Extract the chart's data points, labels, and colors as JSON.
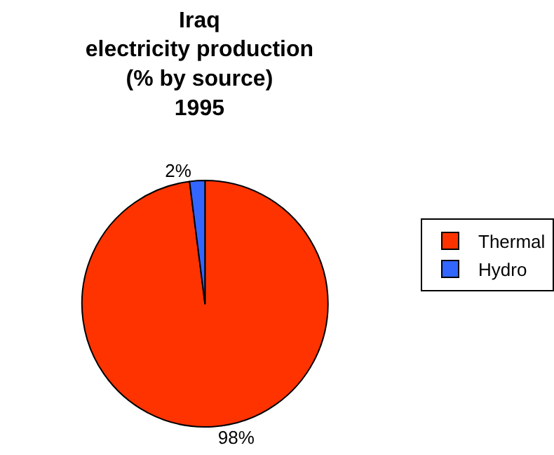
{
  "chart_data": {
    "type": "pie",
    "title": "Iraq\nelectricity production\n(% by source)\n1995",
    "categories": [
      "Thermal",
      "Hydro"
    ],
    "values": [
      98,
      2
    ],
    "colors": [
      "#ff3300",
      "#3366ff"
    ],
    "value_labels": [
      "98%",
      "2%"
    ],
    "legend": "right"
  }
}
